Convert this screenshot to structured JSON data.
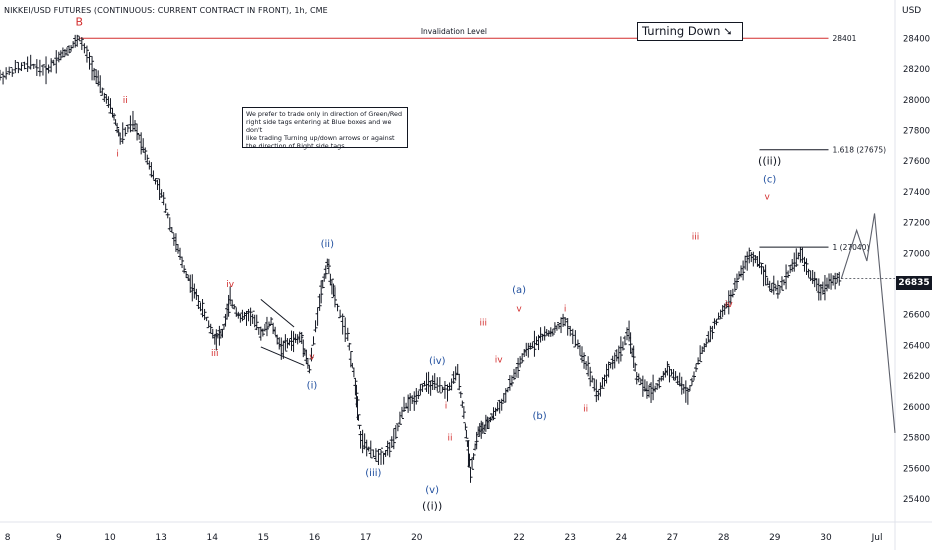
{
  "header": {
    "title": "NIKKEI/USD FUTURES (CONTINUOUS: CURRENT CONTRACT IN FRONT), 1h, CME",
    "currency": "USD"
  },
  "note": {
    "lines": [
      "We prefer to trade only in direction of Green/Red",
      "right side tags entering at Blue boxes and we don't",
      "like trading Turning up/down arrows or against",
      "the direction of Right side tags"
    ]
  },
  "turning_label": {
    "text": "Turning Down",
    "arrow": "➘"
  },
  "current_price": "26835",
  "colors": {
    "red": "#d32f2f",
    "blue": "#1f4e9e",
    "black": "#131722",
    "grid": "#e0e3eb",
    "axis_text": "#131722"
  },
  "chart_data": {
    "type": "line",
    "title": "NIKKEI/USD FUTURES (CONTINUOUS: CURRENT CONTRACT IN FRONT), 1h, CME",
    "ylabel": "USD",
    "ylim": [
      25250,
      28650
    ],
    "yticks": [
      25400,
      25600,
      25800,
      26000,
      26200,
      26400,
      26600,
      26800,
      27000,
      27200,
      27400,
      27600,
      27800,
      28000,
      28200,
      28400
    ],
    "xlim": [
      0,
      17.5
    ],
    "xticks": [
      {
        "x": 0.15,
        "label": "8"
      },
      {
        "x": 1.15,
        "label": "9"
      },
      {
        "x": 2.15,
        "label": "10"
      },
      {
        "x": 3.15,
        "label": "13"
      },
      {
        "x": 4.15,
        "label": "14"
      },
      {
        "x": 5.15,
        "label": "15"
      },
      {
        "x": 6.15,
        "label": "16"
      },
      {
        "x": 7.15,
        "label": "17"
      },
      {
        "x": 8.15,
        "label": "20"
      },
      {
        "x": 10.15,
        "label": "22"
      },
      {
        "x": 11.15,
        "label": "23"
      },
      {
        "x": 12.15,
        "label": "24"
      },
      {
        "x": 13.15,
        "label": "27"
      },
      {
        "x": 14.15,
        "label": "28"
      },
      {
        "x": 15.15,
        "label": "29"
      },
      {
        "x": 16.15,
        "label": "30"
      },
      {
        "x": 17.15,
        "label": "Jul"
      }
    ],
    "series": [
      {
        "points": [
          [
            0.0,
            28150
          ],
          [
            0.3,
            28200
          ],
          [
            0.6,
            28230
          ],
          [
            0.9,
            28190
          ],
          [
            1.15,
            28280
          ],
          [
            1.35,
            28330
          ],
          [
            1.55,
            28401
          ],
          [
            1.8,
            28220
          ],
          [
            2.0,
            28050
          ],
          [
            2.2,
            27920
          ],
          [
            2.35,
            27750
          ],
          [
            2.6,
            27850
          ],
          [
            2.8,
            27700
          ],
          [
            3.0,
            27500
          ],
          [
            3.2,
            27350
          ],
          [
            3.4,
            27100
          ],
          [
            3.6,
            26900
          ],
          [
            3.8,
            26750
          ],
          [
            4.0,
            26600
          ],
          [
            4.2,
            26450
          ],
          [
            4.35,
            26480
          ],
          [
            4.5,
            26700
          ],
          [
            4.7,
            26580
          ],
          [
            4.9,
            26600
          ],
          [
            5.1,
            26480
          ],
          [
            5.3,
            26550
          ],
          [
            5.5,
            26380
          ],
          [
            5.7,
            26430
          ],
          [
            5.9,
            26450
          ],
          [
            6.05,
            26240
          ],
          [
            6.25,
            26700
          ],
          [
            6.4,
            26940
          ],
          [
            6.55,
            26700
          ],
          [
            6.8,
            26450
          ],
          [
            6.95,
            26150
          ],
          [
            7.05,
            25800
          ],
          [
            7.25,
            25700
          ],
          [
            7.5,
            25680
          ],
          [
            7.7,
            25780
          ],
          [
            7.9,
            26000
          ],
          [
            8.1,
            26050
          ],
          [
            8.3,
            26150
          ],
          [
            8.5,
            26140
          ],
          [
            8.75,
            26100
          ],
          [
            8.95,
            26230
          ],
          [
            9.1,
            25880
          ],
          [
            9.2,
            25580
          ],
          [
            9.35,
            25840
          ],
          [
            9.5,
            25870
          ],
          [
            9.65,
            25950
          ],
          [
            9.85,
            26050
          ],
          [
            10.05,
            26200
          ],
          [
            10.25,
            26340
          ],
          [
            10.45,
            26420
          ],
          [
            10.65,
            26470
          ],
          [
            10.85,
            26500
          ],
          [
            11.05,
            26560
          ],
          [
            11.3,
            26400
          ],
          [
            11.5,
            26250
          ],
          [
            11.7,
            26080
          ],
          [
            11.9,
            26250
          ],
          [
            12.1,
            26350
          ],
          [
            12.3,
            26480
          ],
          [
            12.45,
            26200
          ],
          [
            12.65,
            26100
          ],
          [
            12.85,
            26130
          ],
          [
            13.05,
            26250
          ],
          [
            13.25,
            26180
          ],
          [
            13.45,
            26080
          ],
          [
            13.65,
            26300
          ],
          [
            13.85,
            26450
          ],
          [
            14.05,
            26580
          ],
          [
            14.25,
            26680
          ],
          [
            14.45,
            26850
          ],
          [
            14.65,
            26980
          ],
          [
            14.85,
            26950
          ],
          [
            15.05,
            26780
          ],
          [
            15.25,
            26760
          ],
          [
            15.45,
            26900
          ],
          [
            15.65,
            27000
          ],
          [
            15.85,
            26850
          ],
          [
            16.05,
            26760
          ],
          [
            16.25,
            26830
          ],
          [
            16.45,
            26835
          ]
        ]
      }
    ],
    "projection": [
      [
        16.45,
        26835
      ],
      [
        16.75,
        27150
      ],
      [
        16.95,
        26950
      ],
      [
        17.1,
        27260
      ],
      [
        17.5,
        25830
      ]
    ],
    "hlines": [
      {
        "label": "Invalidation Level",
        "value_label": "28401",
        "y": 28401,
        "x1": 1.55,
        "x2": 16.2,
        "color": "red"
      },
      {
        "value_label": "1.618 (27675)",
        "y": 27675,
        "x1": 14.85,
        "x2": 16.2,
        "color": "black"
      },
      {
        "value_label": "1 (27040)",
        "y": 27040,
        "x1": 14.85,
        "x2": 16.2,
        "color": "black"
      }
    ],
    "triangle": {
      "upper": [
        [
          5.1,
          26700
        ],
        [
          5.75,
          26520
        ]
      ],
      "lower": [
        [
          5.1,
          26390
        ],
        [
          5.95,
          26270
        ]
      ]
    },
    "wave_labels": [
      {
        "text": "B",
        "x": 1.55,
        "y": 28485,
        "color": "red",
        "size": 11
      },
      {
        "text": "ii",
        "x": 2.45,
        "y": 27980,
        "color": "red",
        "size": 9
      },
      {
        "text": "i",
        "x": 2.3,
        "y": 27630,
        "color": "red",
        "size": 9
      },
      {
        "text": "iii",
        "x": 4.2,
        "y": 26330,
        "color": "red",
        "size": 9
      },
      {
        "text": "iv",
        "x": 4.5,
        "y": 26780,
        "color": "red",
        "size": 9
      },
      {
        "text": "v",
        "x": 6.1,
        "y": 26310,
        "color": "red",
        "size": 9
      },
      {
        "text": "(i)",
        "x": 6.1,
        "y": 26120,
        "color": "blue",
        "size": 10
      },
      {
        "text": "(ii)",
        "x": 6.4,
        "y": 27040,
        "color": "blue",
        "size": 10
      },
      {
        "text": "(iii)",
        "x": 7.3,
        "y": 25550,
        "color": "blue",
        "size": 10
      },
      {
        "text": "(iv)",
        "x": 8.55,
        "y": 26280,
        "color": "blue",
        "size": 10
      },
      {
        "text": "(v)",
        "x": 8.45,
        "y": 25440,
        "color": "blue",
        "size": 10
      },
      {
        "text": "((i))",
        "x": 8.45,
        "y": 25330,
        "color": "black",
        "size": 11
      },
      {
        "text": "i",
        "x": 8.72,
        "y": 25990,
        "color": "red",
        "size": 9
      },
      {
        "text": "ii",
        "x": 8.8,
        "y": 25780,
        "color": "red",
        "size": 9
      },
      {
        "text": "iii",
        "x": 9.45,
        "y": 26530,
        "color": "red",
        "size": 9
      },
      {
        "text": "iv",
        "x": 9.75,
        "y": 26290,
        "color": "red",
        "size": 9
      },
      {
        "text": "v",
        "x": 10.15,
        "y": 26620,
        "color": "red",
        "size": 9
      },
      {
        "text": "(a)",
        "x": 10.15,
        "y": 26740,
        "color": "blue",
        "size": 10
      },
      {
        "text": "(b)",
        "x": 10.55,
        "y": 25920,
        "color": "blue",
        "size": 10
      },
      {
        "text": "i",
        "x": 11.05,
        "y": 26620,
        "color": "red",
        "size": 9
      },
      {
        "text": "ii",
        "x": 11.45,
        "y": 25970,
        "color": "red",
        "size": 9
      },
      {
        "text": "iii",
        "x": 13.6,
        "y": 27090,
        "color": "red",
        "size": 9
      },
      {
        "text": "iv",
        "x": 14.25,
        "y": 26650,
        "color": "red",
        "size": 9
      },
      {
        "text": "v",
        "x": 15.0,
        "y": 27350,
        "color": "red",
        "size": 9
      },
      {
        "text": "(c)",
        "x": 15.05,
        "y": 27460,
        "color": "blue",
        "size": 10
      },
      {
        "text": "((ii))",
        "x": 15.05,
        "y": 27580,
        "color": "black",
        "size": 11
      }
    ]
  }
}
